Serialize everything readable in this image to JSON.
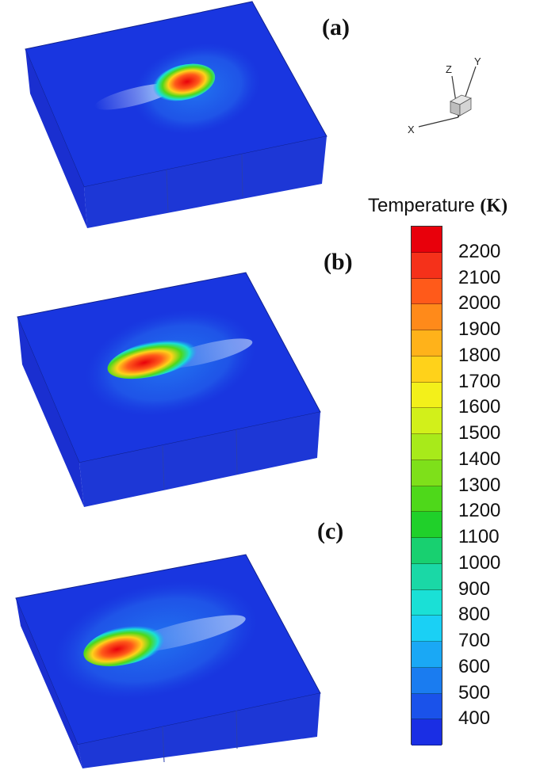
{
  "panels": [
    {
      "label": "(a)"
    },
    {
      "label": "(b)"
    },
    {
      "label": "(c)"
    }
  ],
  "axes_triad": {
    "x": "X",
    "y": "Y",
    "z": "Z"
  },
  "colorbar": {
    "title": "Temperature",
    "unit": "(K)",
    "ticks": [
      "2200",
      "2100",
      "2000",
      "1900",
      "1800",
      "1700",
      "1600",
      "1500",
      "1400",
      "1300",
      "1200",
      "1100",
      "1000",
      "900",
      "800",
      "700",
      "600",
      "500",
      "400"
    ],
    "colors": [
      "#e8000b",
      "#f5311a",
      "#ff5a1a",
      "#ff8a1a",
      "#ffb21a",
      "#ffd21a",
      "#f3f01a",
      "#d2f01a",
      "#a8ea1a",
      "#7ee01a",
      "#4ed81a",
      "#20d02a",
      "#18d070",
      "#1ad8a6",
      "#1ae0d6",
      "#1ad0f5",
      "#1aa8f5",
      "#1a7cf0",
      "#1a52ea",
      "#1a2ee4"
    ]
  },
  "colors": {
    "substrate_top": "#1936e0",
    "substrate_left": "#1a2fd0",
    "substrate_front": "#1d37d6"
  }
}
